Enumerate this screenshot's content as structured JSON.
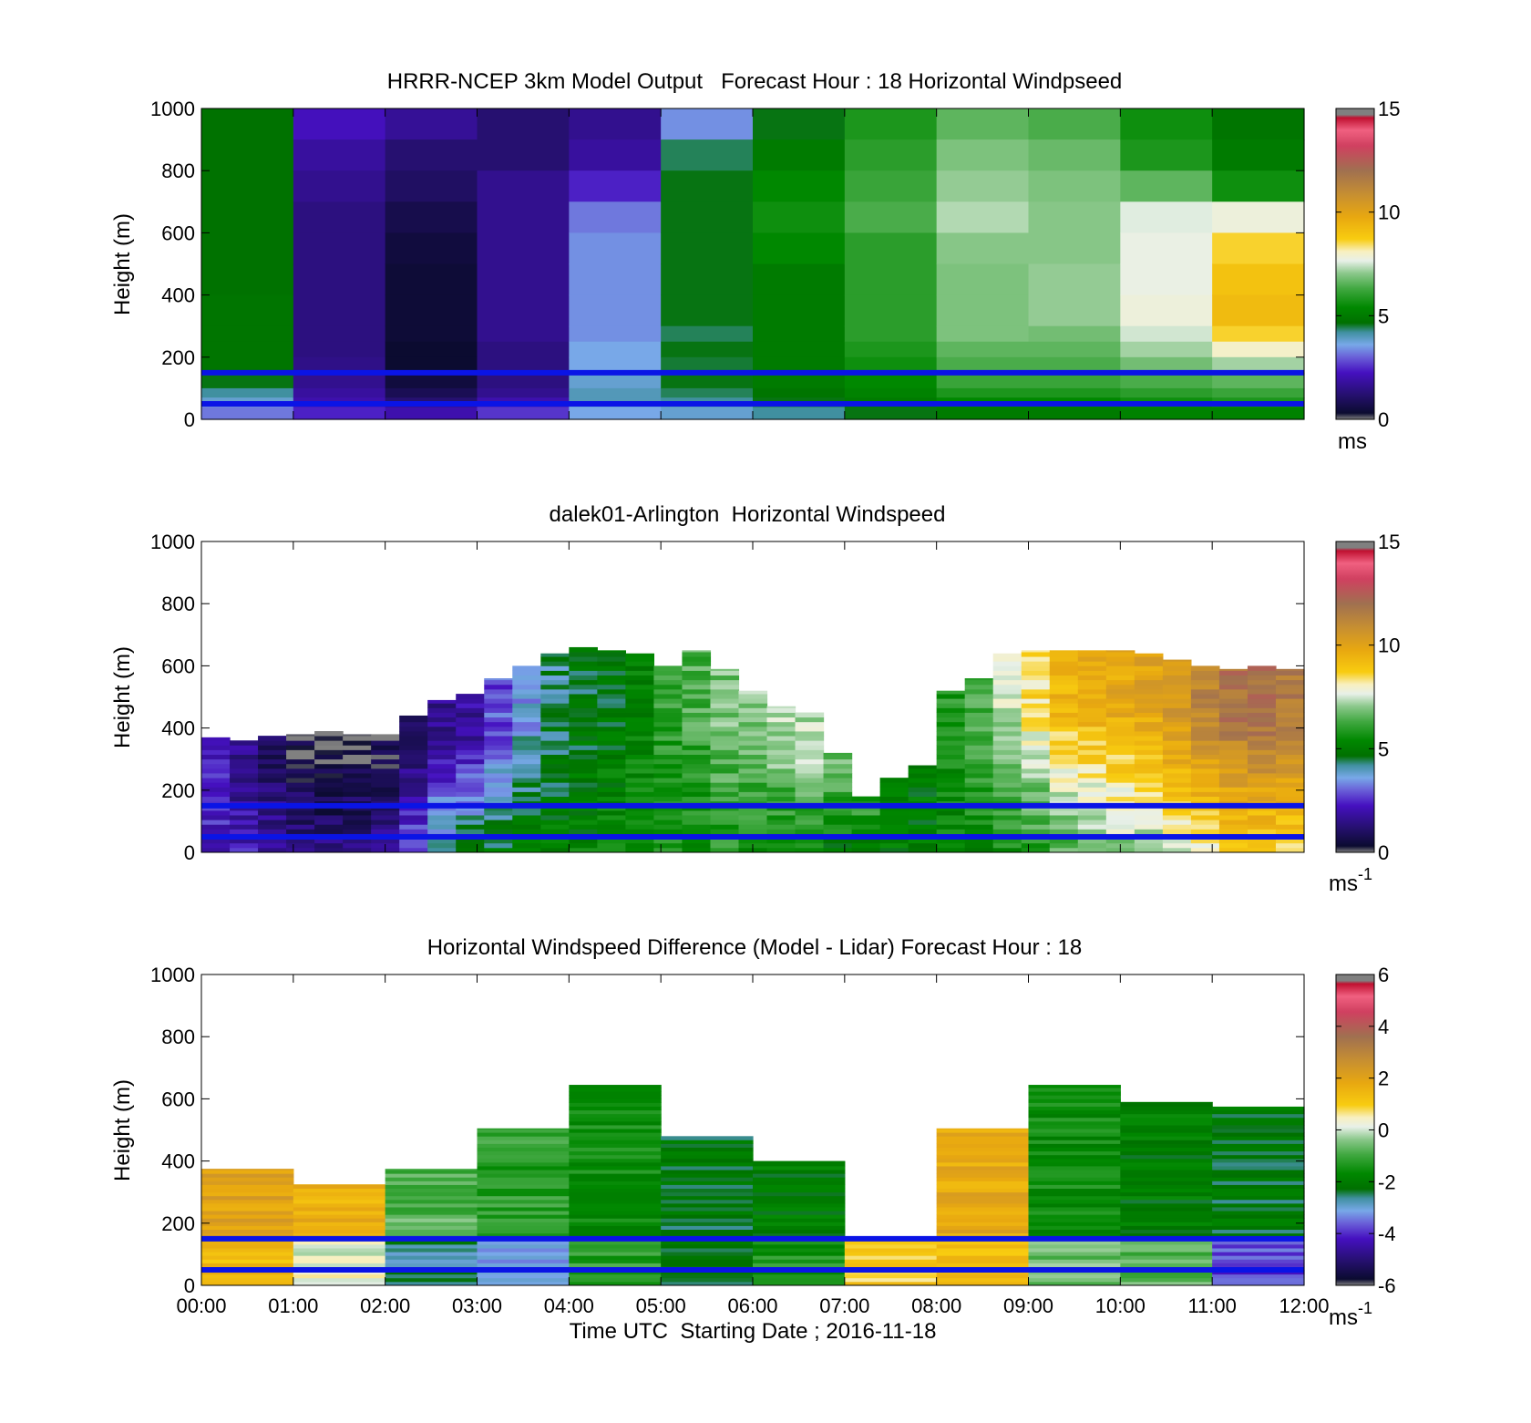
{
  "chart_data": [
    {
      "type": "heatmap",
      "title": "HRRR-NCEP 3km Model Output   Forecast Hour : 18 Horizontal Windpseed",
      "ylabel": "Height (m)",
      "ylim": [
        0,
        1000
      ],
      "yticks": [
        "1000",
        "800",
        "600",
        "400",
        "200",
        "0"
      ],
      "xlim": [
        "00:00",
        "12:00"
      ],
      "colorbar": {
        "ticks": [
          "15",
          "10",
          "5",
          "0"
        ],
        "min": 0,
        "max": 15,
        "unit": "ms"
      },
      "reference_lines_height_m": [
        150,
        50
      ],
      "heights": [
        1000,
        900,
        800,
        700,
        600,
        500,
        400,
        300,
        250,
        200,
        150,
        100,
        70,
        40
      ],
      "columns": [
        [
          4.7,
          4.7,
          4.7,
          4.7,
          4.7,
          4.7,
          4.8,
          4.8,
          4.8,
          4.8,
          4.6,
          4.2,
          3.8,
          3.2
        ],
        [
          2.2,
          1.8,
          1.6,
          1.4,
          1.4,
          1.4,
          1.4,
          1.4,
          1.4,
          1.5,
          1.6,
          1.8,
          2.0,
          2.4
        ],
        [
          1.7,
          1.2,
          1.0,
          0.7,
          0.5,
          0.4,
          0.4,
          0.4,
          0.3,
          0.3,
          0.5,
          0.8,
          1.2,
          2.0
        ],
        [
          1.2,
          1.2,
          1.6,
          1.6,
          1.6,
          1.6,
          1.6,
          1.6,
          1.4,
          1.4,
          1.4,
          1.6,
          2.0,
          2.6
        ],
        [
          1.6,
          1.8,
          2.4,
          3.2,
          3.4,
          3.4,
          3.4,
          3.4,
          3.6,
          3.6,
          3.8,
          4.0,
          4.0,
          3.6
        ],
        [
          3.4,
          4.4,
          4.6,
          4.6,
          4.6,
          4.6,
          4.6,
          4.4,
          4.6,
          4.5,
          4.6,
          4.4,
          4.2,
          3.8
        ],
        [
          4.6,
          5.0,
          5.4,
          5.6,
          5.4,
          5.0,
          5.0,
          5.0,
          5.0,
          5.0,
          5.0,
          4.8,
          4.6,
          4.2
        ],
        [
          5.8,
          6.0,
          6.2,
          6.4,
          6.0,
          6.0,
          6.0,
          6.0,
          5.8,
          5.6,
          5.4,
          5.2,
          5.0,
          4.6
        ],
        [
          6.6,
          6.9,
          7.1,
          7.3,
          7.0,
          6.9,
          6.9,
          6.9,
          6.6,
          6.4,
          6.2,
          5.8,
          5.4,
          5.0
        ],
        [
          6.4,
          6.7,
          6.9,
          7.0,
          7.0,
          7.1,
          7.1,
          6.8,
          6.6,
          6.4,
          6.2,
          5.8,
          5.4,
          5.0
        ],
        [
          5.6,
          5.8,
          6.6,
          7.6,
          7.7,
          7.7,
          7.8,
          7.5,
          7.2,
          6.8,
          6.4,
          6.0,
          5.6,
          5.2
        ],
        [
          4.8,
          5.0,
          5.6,
          7.8,
          8.6,
          9.0,
          9.2,
          8.6,
          8.0,
          7.2,
          6.6,
          6.2,
          5.8,
          5.2
        ]
      ]
    },
    {
      "type": "heatmap",
      "title": "dalek01-Arlington  Horizontal Windspeed",
      "ylabel": "Height (m)",
      "ylim": [
        0,
        1000
      ],
      "yticks": [
        "1000",
        "800",
        "600",
        "400",
        "200",
        "0"
      ],
      "xlim": [
        "00:00",
        "12:00"
      ],
      "colorbar": {
        "ticks": [
          "15",
          "10",
          "5",
          "0"
        ],
        "min": 0,
        "max": 15,
        "unit": "ms",
        "unit_exp": "-1"
      },
      "reference_lines_height_m": [
        150,
        50
      ],
      "profile_top_m": [
        370,
        360,
        375,
        380,
        390,
        380,
        380,
        440,
        490,
        510,
        560,
        600,
        640,
        660,
        650,
        640,
        600,
        650,
        590,
        520,
        470,
        450,
        320,
        180,
        240,
        280,
        520,
        560,
        640,
        650,
        650,
        650,
        650,
        640,
        620,
        600,
        590,
        600,
        590
      ],
      "profile_low_ms": [
        2.4,
        2.2,
        2.0,
        1.6,
        1.4,
        1.4,
        1.6,
        3.0,
        4.4,
        4.8,
        4.8,
        5.0,
        5.2,
        5.2,
        5.4,
        5.4,
        5.6,
        5.4,
        5.8,
        5.4,
        5.2,
        5.4,
        5.0,
        5.0,
        5.0,
        5.0,
        5.2,
        5.4,
        5.6,
        5.8,
        6.4,
        6.6,
        7.0,
        7.2,
        7.6,
        8.0,
        8.4,
        8.4,
        8.4
      ],
      "profile_high_ms": [
        2.2,
        1.6,
        0.8,
        0.4,
        0.3,
        0.4,
        0.5,
        1.2,
        1.6,
        1.8,
        2.8,
        3.6,
        4.2,
        4.6,
        4.8,
        5.2,
        6.0,
        6.4,
        6.8,
        7.0,
        7.2,
        7.4,
        6.6,
        6.0,
        5.2,
        5.0,
        5.8,
        6.4,
        7.4,
        8.4,
        9.4,
        9.6,
        9.8,
        10.0,
        10.6,
        11.2,
        11.8,
        12.0,
        11.6
      ]
    },
    {
      "type": "heatmap",
      "title": "Horizontal Windspeed Difference (Model - Lidar) Forecast Hour : 18",
      "ylabel": "Height (m)",
      "xlabel": "Time UTC  Starting Date ; 2016-11-18",
      "ylim": [
        0,
        1000
      ],
      "yticks": [
        "1000",
        "800",
        "600",
        "400",
        "200",
        "0"
      ],
      "xticks": [
        "00:00",
        "01:00",
        "02:00",
        "03:00",
        "04:00",
        "05:00",
        "06:00",
        "07:00",
        "08:00",
        "09:00",
        "10:00",
        "11:00",
        "12:00"
      ],
      "colorbar": {
        "ticks": [
          "6",
          "4",
          "2",
          "0",
          "-2",
          "-4",
          "-6"
        ],
        "min": -6,
        "max": 6,
        "unit": "ms",
        "unit_exp": "-1"
      },
      "reference_lines_height_m": [
        150,
        50
      ],
      "column_top_m": [
        375,
        325,
        375,
        505,
        645,
        480,
        400,
        150,
        505,
        645,
        590,
        575
      ],
      "column_upper_diff": [
        2.0,
        1.6,
        -0.8,
        -1.2,
        -1.6,
        -2.2,
        -2.0,
        0.8,
        1.8,
        -1.6,
        -2.0,
        -2.2
      ],
      "column_lower_diff": [
        1.4,
        0.2,
        -2.6,
        -3.2,
        -1.2,
        -2.4,
        -1.4,
        1.0,
        1.2,
        -0.6,
        -0.8,
        -3.8
      ]
    }
  ]
}
